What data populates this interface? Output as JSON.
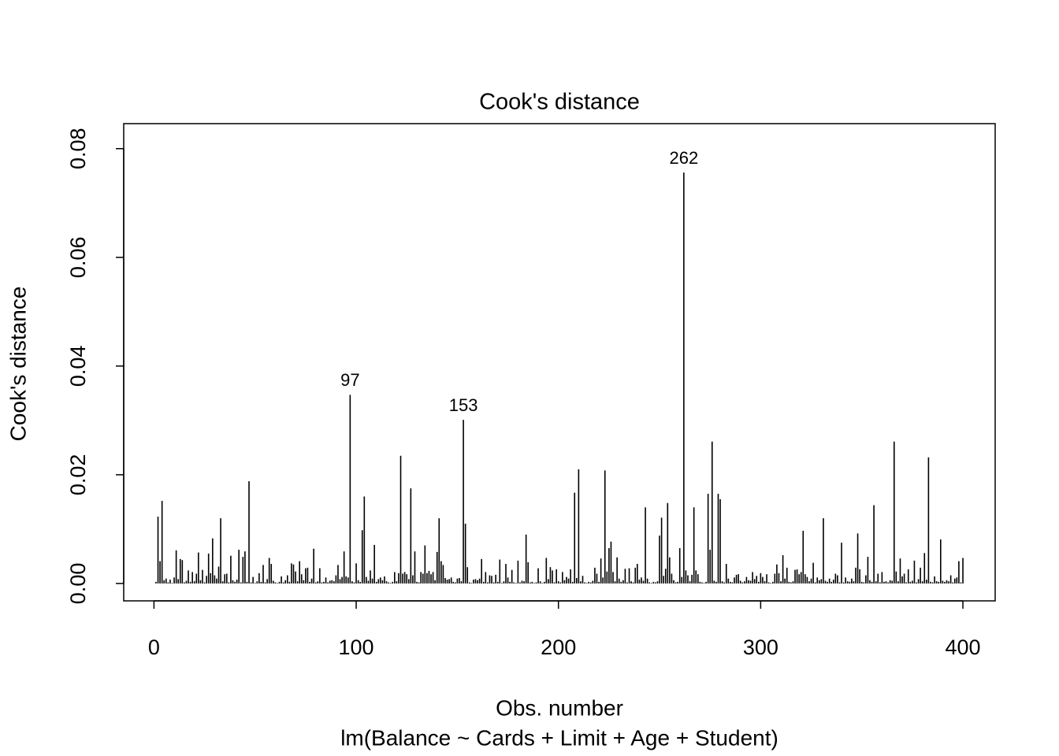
{
  "chart_data": {
    "type": "spike",
    "title": "Cook's distance",
    "xlabel": "Obs. number",
    "ylabel": "Cook's distance",
    "subtitle": "lm(Balance ~ Cards + Limit + Age + Student)",
    "color": "#000000",
    "xlim": [
      -14.96,
      415.96
    ],
    "ylim": [
      -0.0032,
      0.0846
    ],
    "xticks": [
      0,
      100,
      200,
      300,
      400
    ],
    "yticks": [
      {
        "value": 0,
        "label": "0.00"
      },
      {
        "value": 0.02,
        "label": "0.02"
      },
      {
        "value": 0.04,
        "label": "0.04"
      },
      {
        "value": 0.06,
        "label": "0.06"
      },
      {
        "value": 0.08,
        "label": "0.08"
      }
    ],
    "annotations": [
      97,
      153,
      262
    ],
    "x": [
      1,
      2,
      3,
      4,
      5,
      6,
      7,
      8,
      9,
      10,
      11,
      12,
      13,
      14,
      15,
      16,
      17,
      18,
      19,
      20,
      21,
      22,
      23,
      24,
      25,
      26,
      27,
      28,
      29,
      30,
      31,
      32,
      33,
      34,
      35,
      36,
      37,
      38,
      39,
      40,
      41,
      42,
      43,
      44,
      45,
      46,
      47,
      48,
      49,
      50,
      51,
      52,
      53,
      54,
      55,
      56,
      57,
      58,
      59,
      60,
      61,
      62,
      63,
      64,
      65,
      66,
      67,
      68,
      69,
      70,
      71,
      72,
      73,
      74,
      75,
      76,
      77,
      78,
      79,
      80,
      81,
      82,
      83,
      84,
      85,
      86,
      87,
      88,
      89,
      90,
      91,
      92,
      93,
      94,
      95,
      96,
      97,
      98,
      99,
      100,
      101,
      102,
      103,
      104,
      105,
      106,
      107,
      108,
      109,
      110,
      111,
      112,
      113,
      114,
      115,
      116,
      117,
      118,
      119,
      120,
      121,
      122,
      123,
      124,
      125,
      126,
      127,
      128,
      129,
      130,
      131,
      132,
      133,
      134,
      135,
      136,
      137,
      138,
      139,
      140,
      141,
      142,
      143,
      144,
      145,
      146,
      147,
      148,
      149,
      150,
      151,
      152,
      153,
      154,
      155,
      156,
      157,
      158,
      159,
      160,
      161,
      162,
      163,
      164,
      165,
      166,
      167,
      168,
      169,
      170,
      171,
      172,
      173,
      174,
      175,
      176,
      177,
      178,
      179,
      180,
      181,
      182,
      183,
      184,
      185,
      186,
      187,
      188,
      189,
      190,
      191,
      192,
      193,
      194,
      195,
      196,
      197,
      198,
      199,
      200,
      201,
      202,
      203,
      204,
      205,
      206,
      207,
      208,
      209,
      210,
      211,
      212,
      213,
      214,
      215,
      216,
      217,
      218,
      219,
      220,
      221,
      222,
      223,
      224,
      225,
      226,
      227,
      228,
      229,
      230,
      231,
      232,
      233,
      234,
      235,
      236,
      237,
      238,
      239,
      240,
      241,
      242,
      243,
      244,
      245,
      246,
      247,
      248,
      249,
      250,
      251,
      252,
      253,
      254,
      255,
      256,
      257,
      258,
      259,
      260,
      261,
      262,
      263,
      264,
      265,
      266,
      267,
      268,
      269,
      270,
      271,
      272,
      273,
      274,
      275,
      276,
      277,
      278,
      279,
      280,
      281,
      282,
      283,
      284,
      285,
      286,
      287,
      288,
      289,
      290,
      291,
      292,
      293,
      294,
      295,
      296,
      297,
      298,
      299,
      300,
      301,
      302,
      303,
      304,
      305,
      306,
      307,
      308,
      309,
      310,
      311,
      312,
      313,
      314,
      315,
      316,
      317,
      318,
      319,
      320,
      321,
      322,
      323,
      324,
      325,
      326,
      327,
      328,
      329,
      330,
      331,
      332,
      333,
      334,
      335,
      336,
      337,
      338,
      339,
      340,
      341,
      342,
      343,
      344,
      345,
      346,
      347,
      348,
      349,
      350,
      351,
      352,
      353,
      354,
      355,
      356,
      357,
      358,
      359,
      360,
      361,
      362,
      363,
      364,
      365,
      366,
      367,
      368,
      369,
      370,
      371,
      372,
      373,
      374,
      375,
      376,
      377,
      378,
      379,
      380,
      381,
      382,
      383,
      384,
      385,
      386,
      387,
      388,
      389,
      390,
      391,
      392,
      393,
      394,
      395,
      396,
      397,
      398,
      399,
      400
    ],
    "values": [
      0.0003,
      0.0123,
      0.0041,
      0.0152,
      0.0006,
      0.0009,
      0.0002,
      0.0007,
      0.0001,
      0.0011,
      0.0061,
      0.0008,
      0.0045,
      0.0043,
      0.0002,
      0.0005,
      0.0024,
      0.0003,
      0.0021,
      0.0004,
      0.0018,
      0.0057,
      0.0006,
      0.0025,
      0.0002,
      0.0014,
      0.0055,
      0.0019,
      0.0083,
      0.0015,
      0.0009,
      0.0031,
      0.012,
      0.0004,
      0.0017,
      0.0018,
      0.0002,
      0.0051,
      0.0006,
      0.0003,
      0.0007,
      0.0062,
      0.0002,
      0.0049,
      0.0059,
      0.0003,
      0.0188,
      0.0002,
      0.0012,
      0.0001,
      0.0004,
      0.0019,
      0.0003,
      0.0034,
      0.0002,
      0.0008,
      0.0047,
      0.0036,
      0.0005,
      0.0002,
      0.0001,
      0.0003,
      0.0013,
      0.0002,
      0.0006,
      0.0015,
      0.0003,
      0.0037,
      0.0035,
      0.0022,
      0.0004,
      0.0041,
      0.0017,
      0.0006,
      0.0028,
      0.0029,
      0.0003,
      0.0009,
      0.0064,
      0.0002,
      0.0004,
      0.0028,
      0.0002,
      0.0003,
      0.0011,
      0.0002,
      0.0005,
      0.0006,
      0.0004,
      0.0015,
      0.0034,
      0.0008,
      0.0012,
      0.0059,
      0.0013,
      0.0011,
      0.0347,
      0.0004,
      0.0002,
      0.0037,
      0.0006,
      0.0003,
      0.0098,
      0.016,
      0.0012,
      0.0005,
      0.0024,
      0.0009,
      0.0071,
      0.0003,
      0.0008,
      0.0011,
      0.0006,
      0.0013,
      0.0004,
      0.0002,
      0.0001,
      0.0003,
      0.0021,
      0.0004,
      0.0019,
      0.0235,
      0.0018,
      0.0021,
      0.0017,
      0.0008,
      0.0175,
      0.0015,
      0.0059,
      0.0003,
      0.0002,
      0.0021,
      0.0018,
      0.007,
      0.0019,
      0.0023,
      0.0017,
      0.0021,
      0.0006,
      0.0058,
      0.012,
      0.0041,
      0.0034,
      0.001,
      0.0007,
      0.0008,
      0.0011,
      0.0003,
      0.0002,
      0.0009,
      0.001,
      0.0004,
      0.0301,
      0.011,
      0.003,
      0.0002,
      0.0001,
      0.0007,
      0.0008,
      0.0006,
      0.0009,
      0.0045,
      0.0003,
      0.0021,
      0.0002,
      0.0015,
      0.0014,
      0.0002,
      0.0016,
      0.0003,
      0.0044,
      0.0001,
      0.0004,
      0.0036,
      0.0011,
      0.0003,
      0.0025,
      0.0002,
      0.0001,
      0.0042,
      0.0002,
      0.0005,
      0.0004,
      0.009,
      0.0039,
      0.0002,
      0.0003,
      0.0001,
      0.0002,
      0.0028,
      0.0004,
      0.0001,
      0.0003,
      0.0047,
      0.0008,
      0.003,
      0.0024,
      0.0002,
      0.0026,
      0.0004,
      0.0002,
      0.0021,
      0.0006,
      0.0012,
      0.0009,
      0.0026,
      0.0003,
      0.0167,
      0.001,
      0.021,
      0.0004,
      0.0014,
      0.0002,
      0.0001,
      0.0003,
      0.0002,
      0.0005,
      0.0029,
      0.0018,
      0.0003,
      0.0046,
      0.0011,
      0.0208,
      0.0022,
      0.0065,
      0.0077,
      0.0021,
      0.0004,
      0.0048,
      0.0009,
      0.0003,
      0.0006,
      0.0027,
      0.0002,
      0.0028,
      0.0004,
      0.0002,
      0.0029,
      0.0036,
      0.0007,
      0.0011,
      0.0005,
      0.014,
      0.0009,
      0.0002,
      0.0001,
      0.0003,
      0.0002,
      0.0004,
      0.0088,
      0.0121,
      0.0014,
      0.0027,
      0.0148,
      0.0048,
      0.0018,
      0.0006,
      0.0002,
      0.0003,
      0.0065,
      0.0012,
      0.0756,
      0.0024,
      0.0015,
      0.0004,
      0.0016,
      0.014,
      0.0024,
      0.0017,
      0.0003,
      0.0002,
      0.0001,
      0.0003,
      0.0165,
      0.0062,
      0.0261,
      0.0005,
      0.0003,
      0.0165,
      0.0155,
      0.0004,
      0.0002,
      0.0036,
      0.0009,
      0.0003,
      0.0002,
      0.0011,
      0.0016,
      0.0017,
      0.0005,
      0.0002,
      0.0004,
      0.0012,
      0.0006,
      0.0005,
      0.0021,
      0.0008,
      0.0014,
      0.0003,
      0.0019,
      0.0012,
      0.0004,
      0.0017,
      0.0002,
      0.0001,
      0.0003,
      0.0018,
      0.0035,
      0.0019,
      0.0004,
      0.0052,
      0.0009,
      0.0029,
      0.0003,
      0.0002,
      0.0004,
      0.0025,
      0.0026,
      0.0017,
      0.0021,
      0.0097,
      0.0017,
      0.0012,
      0.0004,
      0.0009,
      0.0038,
      0.0002,
      0.0011,
      0.0006,
      0.0008,
      0.012,
      0.0005,
      0.0003,
      0.0009,
      0.0003,
      0.0007,
      0.0018,
      0.0015,
      0.0002,
      0.0075,
      0.0002,
      0.0011,
      0.0004,
      0.0003,
      0.0009,
      0.0004,
      0.0029,
      0.0092,
      0.0026,
      0.0003,
      0.0002,
      0.0015,
      0.0049,
      0.0006,
      0.0003,
      0.0144,
      0.0004,
      0.0018,
      0.0002,
      0.0021,
      0.0003,
      0.0004,
      0.0002,
      0.0006,
      0.0005,
      0.0261,
      0.0022,
      0.0004,
      0.0046,
      0.0013,
      0.0018,
      0.0002,
      0.0026,
      0.0003,
      0.0005,
      0.0042,
      0.0002,
      0.0008,
      0.0029,
      0.0004,
      0.0056,
      0.0007,
      0.0232,
      0.0003,
      0.0002,
      0.0013,
      0.0004,
      0.0003,
      0.0081,
      0.0005,
      0.0003,
      0.0006,
      0.0004,
      0.0015,
      0.0002,
      0.0009,
      0.0011,
      0.0041,
      0.0002,
      0.0047
    ]
  }
}
